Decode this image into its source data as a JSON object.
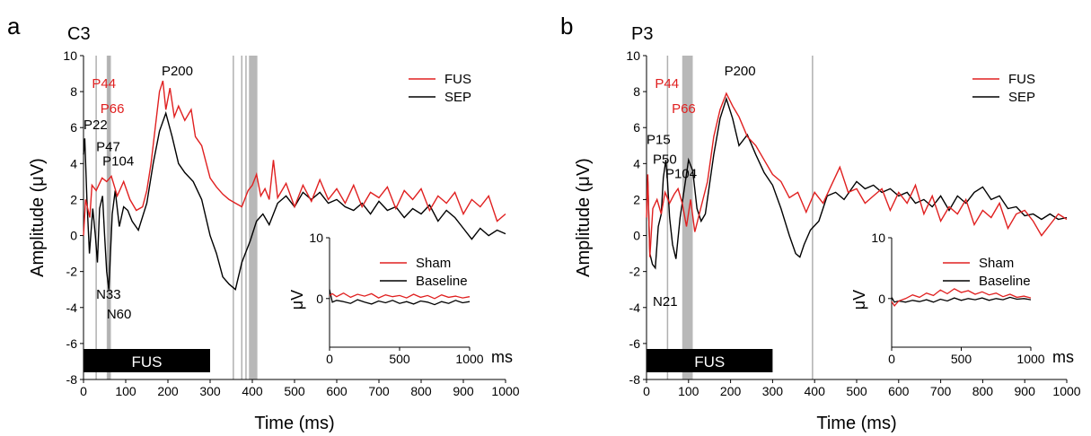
{
  "chart_data": [
    {
      "type": "line",
      "panel_letter": "a",
      "title": "C3",
      "xlabel": "Time (ms)",
      "ylabel": "Amplitude (μV)",
      "xlim": [
        0,
        1000
      ],
      "ylim": [
        -8,
        10
      ],
      "xticks": [
        "0",
        "100",
        "200",
        "300",
        "400",
        "500",
        "600",
        "700",
        "800",
        "900",
        "1000"
      ],
      "yticks": [
        "-8",
        "-6",
        "-4",
        "-2",
        "0",
        "2",
        "4",
        "6",
        "8",
        "10"
      ],
      "fus_bar": {
        "label": "FUS",
        "start": 0,
        "end": 300
      },
      "vlines": [
        30,
        60,
        355,
        375,
        385
      ],
      "vbands": [
        [
          55,
          65
        ],
        [
          392,
          412
        ]
      ],
      "legend": [
        "FUS",
        "SEP"
      ],
      "series": [
        {
          "name": "FUS",
          "color": "#e02020",
          "x": [
            0,
            5,
            10,
            15,
            20,
            30,
            44,
            55,
            66,
            80,
            95,
            110,
            125,
            140,
            150,
            160,
            170,
            180,
            188,
            195,
            205,
            215,
            225,
            240,
            255,
            265,
            280,
            300,
            315,
            330,
            345,
            360,
            375,
            390,
            400,
            410,
            420,
            430,
            440,
            450,
            460,
            480,
            500,
            520,
            540,
            560,
            580,
            600,
            620,
            640,
            660,
            680,
            700,
            720,
            740,
            760,
            780,
            800,
            820,
            840,
            860,
            880,
            900,
            920,
            940,
            960,
            980,
            1000
          ],
          "y": [
            0,
            2,
            1.5,
            1,
            2.8,
            2.5,
            3.2,
            3.0,
            3.3,
            2.2,
            3.0,
            2.0,
            1.4,
            1.6,
            2.5,
            4,
            6,
            8,
            8.6,
            7,
            8.2,
            6.6,
            7.2,
            6.4,
            7,
            5.5,
            5,
            3.2,
            2.7,
            2.3,
            2,
            1.8,
            1.6,
            2.5,
            2.8,
            3.4,
            2.2,
            2.6,
            2.0,
            4.2,
            2.1,
            2.9,
            1.6,
            2.8,
            1.9,
            3.1,
            2.0,
            2.6,
            1.8,
            2.8,
            1.6,
            2.4,
            2.1,
            2.7,
            1.5,
            2.5,
            2.0,
            2.6,
            1.4,
            2.2,
            1.8,
            2.4,
            1.2,
            2.0,
            1.6,
            2.2,
            0.8,
            1.2
          ]
        },
        {
          "name": "SEP",
          "color": "#000000",
          "x": [
            0,
            3,
            8,
            14,
            22,
            28,
            33,
            38,
            45,
            50,
            55,
            60,
            68,
            75,
            85,
            95,
            105,
            115,
            130,
            150,
            165,
            180,
            195,
            210,
            225,
            240,
            260,
            280,
            300,
            315,
            330,
            345,
            360,
            375,
            395,
            410,
            425,
            440,
            460,
            480,
            500,
            520,
            540,
            560,
            580,
            600,
            620,
            640,
            660,
            680,
            700,
            720,
            740,
            760,
            780,
            800,
            820,
            840,
            860,
            880,
            900,
            920,
            940,
            960,
            980,
            1000
          ],
          "y": [
            4.5,
            5.4,
            2,
            -1,
            1.5,
            0,
            -1.5,
            1.5,
            2.2,
            0,
            -2,
            -3,
            1.2,
            2.5,
            0.5,
            1.6,
            1.4,
            0.8,
            0.3,
            1.8,
            4,
            5.8,
            6.8,
            5.5,
            4,
            3.5,
            3,
            2,
            0,
            -1,
            -2.3,
            -2.7,
            -3,
            -1.5,
            -0.3,
            0.8,
            1.2,
            0.6,
            1.8,
            2.2,
            1.6,
            2.4,
            2.0,
            2.4,
            1.8,
            2.0,
            1.6,
            1.4,
            1.8,
            1.2,
            1.9,
            1.4,
            1.6,
            1.0,
            1.5,
            1.2,
            1.7,
            0.8,
            1.4,
            1.0,
            0.4,
            -0.2,
            0.4,
            0.0,
            0.3,
            0.1
          ]
        }
      ],
      "inset": {
        "xlim": [
          0,
          1000
        ],
        "ylim": [
          -8,
          10
        ],
        "xticks": [
          "0",
          "500",
          "1000"
        ],
        "yticks": [
          "0",
          "10"
        ],
        "xlabel": "ms",
        "ylabel": "μV",
        "legend": [
          "Sham",
          "Baseline"
        ],
        "series": [
          {
            "name": "Sham",
            "color": "#e02020",
            "x": [
              0,
              20,
              50,
              100,
              150,
              200,
              250,
              300,
              350,
              400,
              450,
              500,
              550,
              600,
              650,
              700,
              750,
              800,
              850,
              900,
              950,
              1000
            ],
            "y": [
              0.5,
              0.8,
              0.3,
              0.9,
              0.2,
              0.7,
              0.4,
              0.8,
              0.1,
              0.6,
              0.3,
              0.5,
              0.1,
              0.7,
              0.2,
              0.5,
              0.0,
              0.6,
              0.2,
              0.4,
              0.1,
              0.3
            ]
          },
          {
            "name": "Baseline",
            "color": "#000000",
            "x": [
              0,
              20,
              50,
              100,
              150,
              200,
              250,
              300,
              350,
              400,
              450,
              500,
              550,
              600,
              650,
              700,
              750,
              800,
              850,
              900,
              950,
              1000
            ],
            "y": [
              1.5,
              -0.6,
              -0.3,
              -0.5,
              -0.8,
              -0.2,
              -0.6,
              -0.9,
              -0.4,
              -0.7,
              -0.3,
              -0.8,
              -0.5,
              -0.9,
              -0.4,
              -0.6,
              -1.0,
              -0.5,
              -0.8,
              -0.3,
              -0.7,
              -0.5
            ]
          }
        ]
      },
      "annotations": [
        {
          "text": "P44",
          "color": "#e02020",
          "x": 20,
          "y": 8.2
        },
        {
          "text": "P66",
          "color": "#e02020",
          "x": 40,
          "y": 6.8
        },
        {
          "text": "P22",
          "color": "#000000",
          "x": 0,
          "y": 5.9
        },
        {
          "text": "P47",
          "color": "#000000",
          "x": 30,
          "y": 4.7
        },
        {
          "text": "P104",
          "color": "#000000",
          "x": 45,
          "y": 3.9
        },
        {
          "text": "P200",
          "color": "#000000",
          "x": 185,
          "y": 8.9
        },
        {
          "text": "N33",
          "color": "#000000",
          "x": 30,
          "y": -3.5
        },
        {
          "text": "N60",
          "color": "#000000",
          "x": 55,
          "y": -4.6
        }
      ]
    },
    {
      "type": "line",
      "panel_letter": "b",
      "title": "P3",
      "xlabel": "Time (ms)",
      "ylabel": "Amplitude (μV)",
      "xlim": [
        0,
        1000
      ],
      "ylim": [
        -8,
        10
      ],
      "xticks": [
        "0",
        "100",
        "200",
        "300",
        "400",
        "500",
        "600",
        "700",
        "800",
        "900",
        "1000"
      ],
      "yticks": [
        "-8",
        "-6",
        "-4",
        "-2",
        "0",
        "2",
        "4",
        "6",
        "8",
        "10"
      ],
      "fus_bar": {
        "label": "FUS",
        "start": 0,
        "end": 300
      },
      "vlines": [
        50,
        395
      ],
      "vbands": [
        [
          85,
          110
        ]
      ],
      "legend": [
        "FUS",
        "SEP"
      ],
      "series": [
        {
          "name": "FUS",
          "color": "#e02020",
          "x": [
            0,
            3,
            8,
            15,
            25,
            35,
            44,
            55,
            66,
            75,
            85,
            95,
            105,
            115,
            130,
            145,
            160,
            175,
            190,
            205,
            220,
            240,
            260,
            280,
            300,
            320,
            340,
            360,
            380,
            400,
            420,
            440,
            460,
            480,
            500,
            520,
            540,
            560,
            580,
            600,
            620,
            640,
            660,
            680,
            700,
            720,
            740,
            760,
            780,
            800,
            820,
            840,
            860,
            880,
            900,
            920,
            940,
            960,
            980,
            1000
          ],
          "y": [
            1,
            3.4,
            -1.2,
            1.5,
            2,
            1.2,
            2.4,
            1.8,
            2.3,
            2.6,
            1.8,
            0.5,
            2,
            0.2,
            1.6,
            3,
            5.5,
            7,
            7.9,
            7.2,
            6.6,
            5.5,
            5,
            4.2,
            3.4,
            3.0,
            2.1,
            2.4,
            1.3,
            2.4,
            1.8,
            2.8,
            3.8,
            2.4,
            2.6,
            1.8,
            2.2,
            2.6,
            1.4,
            2.4,
            1.8,
            2.8,
            1.2,
            2.2,
            0.8,
            1.6,
            1.2,
            2.0,
            0.6,
            1.4,
            1.0,
            1.8,
            0.4,
            1.2,
            1.4,
            0.8,
            0.0,
            0.6,
            1.2,
            0.9
          ]
        },
        {
          "name": "SEP",
          "color": "#000000",
          "x": [
            0,
            3,
            8,
            14,
            21,
            28,
            35,
            40,
            46,
            50,
            55,
            62,
            70,
            80,
            90,
            100,
            110,
            120,
            130,
            140,
            160,
            175,
            190,
            205,
            220,
            240,
            260,
            280,
            300,
            320,
            340,
            355,
            365,
            375,
            390,
            410,
            430,
            450,
            470,
            500,
            520,
            540,
            560,
            580,
            600,
            620,
            640,
            660,
            680,
            700,
            720,
            740,
            760,
            780,
            800,
            820,
            840,
            860,
            880,
            900,
            920,
            940,
            960,
            980,
            1000
          ],
          "y": [
            2,
            3,
            -1,
            -1.6,
            -1.8,
            0.5,
            1.2,
            3.2,
            4.2,
            3,
            1,
            -0.5,
            -1.3,
            1,
            2.6,
            4.2,
            3.6,
            1.5,
            0.8,
            1.2,
            4.5,
            6.5,
            7.6,
            6.5,
            5,
            5.6,
            4.5,
            3.5,
            2.8,
            1.5,
            0,
            -1,
            -1.2,
            -0.5,
            0.3,
            0.8,
            2.2,
            2.4,
            2.0,
            3.0,
            2.6,
            2.8,
            2.4,
            2.6,
            2.2,
            2.4,
            1.8,
            2.0,
            1.6,
            2.2,
            1.4,
            2.2,
            1.8,
            2.4,
            2.7,
            2.0,
            2.2,
            1.5,
            1.6,
            1.1,
            1.2,
            0.9,
            1.2,
            0.9,
            1.0
          ]
        }
      ],
      "inset": {
        "xlim": [
          0,
          1000
        ],
        "ylim": [
          -8,
          10
        ],
        "xticks": [
          "0",
          "500",
          "1000"
        ],
        "yticks": [
          "0",
          "10"
        ],
        "xlabel": "ms",
        "ylabel": "μV",
        "legend": [
          "Sham",
          "Baseline"
        ],
        "series": [
          {
            "name": "Sham",
            "color": "#e02020",
            "x": [
              0,
              20,
              50,
              100,
              150,
              200,
              250,
              300,
              350,
              400,
              450,
              500,
              550,
              600,
              650,
              700,
              750,
              800,
              850,
              900,
              950,
              1000
            ],
            "y": [
              -0.5,
              -1.2,
              -0.4,
              0.0,
              0.6,
              0.2,
              0.9,
              0.5,
              1.4,
              0.8,
              1.6,
              1.0,
              1.3,
              0.7,
              1.1,
              0.6,
              0.9,
              0.3,
              0.7,
              0.2,
              0.4,
              0.1
            ]
          },
          {
            "name": "Baseline",
            "color": "#000000",
            "x": [
              0,
              20,
              50,
              100,
              150,
              200,
              250,
              300,
              350,
              400,
              450,
              500,
              550,
              600,
              650,
              700,
              750,
              800,
              850,
              900,
              950,
              1000
            ],
            "y": [
              0.2,
              -0.6,
              -0.4,
              -0.6,
              -0.3,
              -0.5,
              -0.2,
              -0.6,
              -0.1,
              -0.4,
              0.1,
              -0.3,
              0.0,
              -0.2,
              0.1,
              -0.3,
              0.0,
              -0.2,
              0.2,
              -0.1,
              0.0,
              -0.2
            ]
          }
        ]
      },
      "annotations": [
        {
          "text": "P44",
          "color": "#e02020",
          "x": 20,
          "y": 8.2
        },
        {
          "text": "P66",
          "color": "#e02020",
          "x": 60,
          "y": 6.8
        },
        {
          "text": "P15",
          "color": "#000000",
          "x": 0,
          "y": 5.1
        },
        {
          "text": "P50",
          "color": "#000000",
          "x": 15,
          "y": 4.0
        },
        {
          "text": "P104",
          "color": "#000000",
          "x": 45,
          "y": 3.2
        },
        {
          "text": "P200",
          "color": "#000000",
          "x": 185,
          "y": 8.9
        },
        {
          "text": "N21",
          "color": "#000000",
          "x": 15,
          "y": -3.9
        }
      ]
    }
  ]
}
